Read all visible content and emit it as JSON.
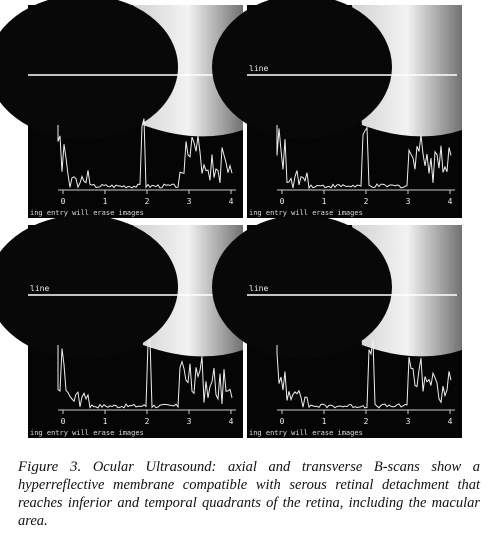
{
  "figure": {
    "panels": [
      {
        "line_label": null,
        "ticks": [
          "0",
          "1",
          "2",
          "3",
          "4"
        ],
        "footer": "ing entry will erase images"
      },
      {
        "line_label": "line",
        "ticks": [
          "0",
          "1",
          "2",
          "3",
          "4"
        ],
        "footer": "ing entry will erase images"
      },
      {
        "line_label": "line",
        "ticks": [
          "0",
          "1",
          "2",
          "3",
          "4"
        ],
        "footer": "ing entry will erase images"
      },
      {
        "line_label": "line",
        "ticks": [
          "0",
          "1",
          "2",
          "3",
          "4"
        ],
        "footer": "ing entry will erase images"
      }
    ],
    "caption": {
      "label": "Figure 3.",
      "text": "Ocular Ultrasound: axial and transverse B-scans show a hyperreflective membrane compatible with serous retinal detachment that reaches inferior and temporal quadrants of the retina, including the macular area."
    }
  }
}
